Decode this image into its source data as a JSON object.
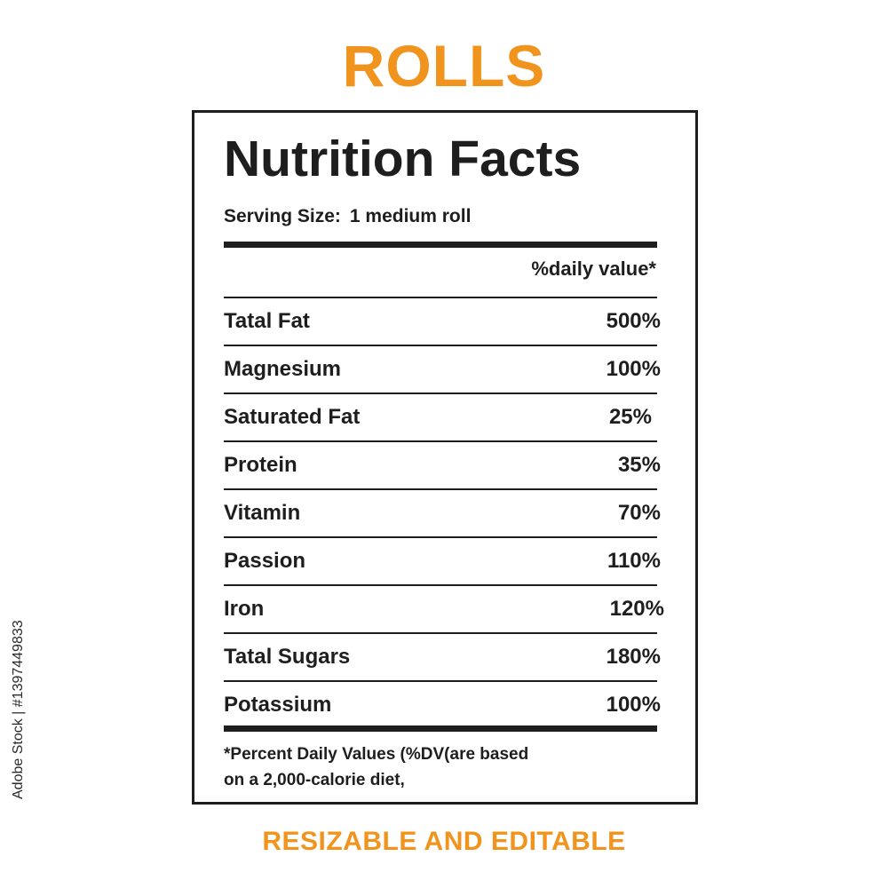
{
  "title": "ROLLS",
  "label": {
    "heading": "Nutrition Facts",
    "serving_label": "Serving Size:",
    "serving_value": "1 medium roll",
    "dv_header": "%daily value*",
    "nutrients": [
      {
        "name": "Tatal Fat",
        "percent": "500%"
      },
      {
        "name": "Magnesium",
        "percent": "100%"
      },
      {
        "name": "Saturated Fat",
        "percent": "25%"
      },
      {
        "name": "Protein",
        "percent": "35%"
      },
      {
        "name": "Vitamin",
        "percent": "70%"
      },
      {
        "name": "Passion",
        "percent": "110%"
      },
      {
        "name": "Iron",
        "percent": "120%"
      },
      {
        "name": "Tatal Sugars",
        "percent": "180%"
      },
      {
        "name": "Potassium",
        "percent": "100%"
      }
    ],
    "footnote_line1": "*Percent Daily Values (%DV(are  based",
    "footnote_line2": "on a 2,000-calorie diet,"
  },
  "subtitle": "RESIZABLE AND EDITABLE",
  "stock_id": "Adobe Stock | #1397449833",
  "colors": {
    "accent": "#f0941d",
    "text": "#1e1e1e",
    "background": "#ffffff"
  }
}
